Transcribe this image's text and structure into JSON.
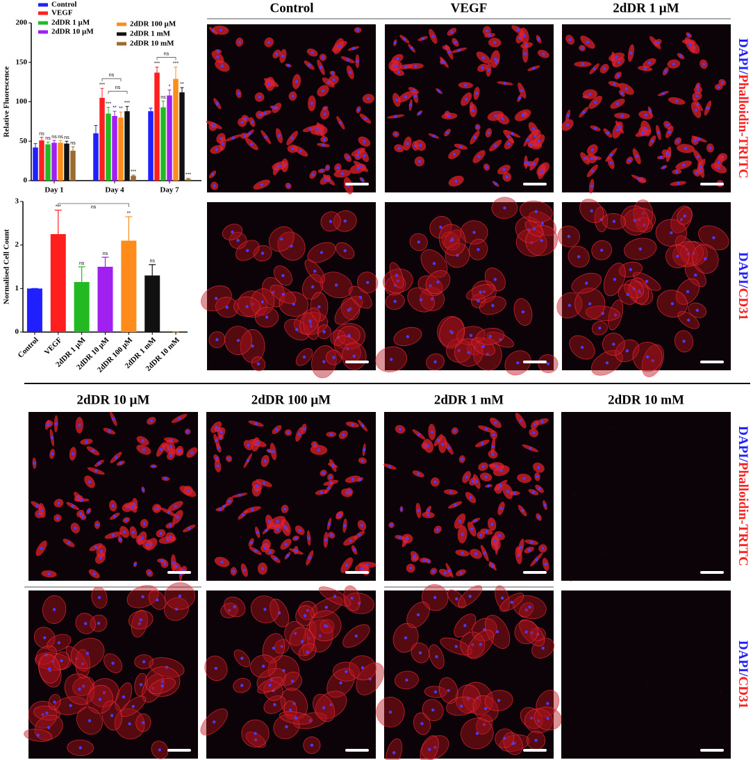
{
  "chart_data": [
    {
      "type": "grouped-bar",
      "ylabel": "Relative Fluorescence",
      "categories": [
        "Day 1",
        "Day 4",
        "Day 7"
      ],
      "ylim": [
        0,
        200
      ],
      "yticks": [
        0,
        50,
        100,
        150,
        200
      ],
      "series": [
        {
          "name": "Control",
          "color": "#1f1fff",
          "values": [
            42,
            60,
            88
          ],
          "errors": [
            5,
            10,
            4
          ],
          "significance": [
            null,
            null,
            null
          ]
        },
        {
          "name": "VEGF",
          "color": "#ff1f1f",
          "values": [
            51,
            105,
            137
          ],
          "errors": [
            4,
            12,
            7
          ],
          "significance": [
            "ns",
            "***",
            "***"
          ]
        },
        {
          "name": "2dDR 1 µM",
          "color": "#22b922",
          "values": [
            46,
            85,
            93
          ],
          "errors": [
            3,
            8,
            8
          ],
          "significance": [
            "ns",
            "***",
            "ns"
          ]
        },
        {
          "name": "2dDR 10 µM",
          "color": "#a020f0",
          "values": [
            48,
            82,
            108
          ],
          "errors": [
            3,
            6,
            7
          ],
          "significance": [
            "ns",
            "**",
            "*"
          ]
        },
        {
          "name": "2dDR 100 µM",
          "color": "#ff8c1a",
          "values": [
            48,
            80,
            129
          ],
          "errors": [
            3,
            7,
            15
          ],
          "significance": [
            "ns",
            "**",
            "***"
          ]
        },
        {
          "name": "2dDR 1 mM",
          "color": "#111111",
          "values": [
            47,
            88,
            112
          ],
          "errors": [
            3,
            6,
            6
          ],
          "significance": [
            "ns",
            "***",
            "**"
          ]
        },
        {
          "name": "2dDR 10 mM",
          "color": "#9c6b30",
          "values": [
            38,
            6,
            2
          ],
          "errors": [
            5,
            1,
            1
          ],
          "significance": [
            "ns",
            "***",
            "***"
          ]
        }
      ],
      "comparisons": [
        {
          "category": 1,
          "series": [
            1,
            4
          ],
          "label": "ns"
        },
        {
          "category": 1,
          "series": [
            2,
            5
          ],
          "label": "ns"
        },
        {
          "category": 2,
          "series": [
            1,
            4
          ],
          "label": "ns"
        }
      ]
    },
    {
      "type": "bar",
      "ylabel": "Normalised Cell Count",
      "categories": [
        "Control",
        "VEGF",
        "2dDR 1 µM",
        "2dDR 10 µM",
        "2dDR 100 µM",
        "2dDR 1 mM",
        "2dDR 10 mM"
      ],
      "values": [
        1,
        2.25,
        1.15,
        1.5,
        2.1,
        1.3,
        0
      ],
      "errors": [
        0,
        0.55,
        0.35,
        0.22,
        0.55,
        0.25,
        0
      ],
      "significance": [
        null,
        "***",
        "ns",
        "ns",
        "**",
        "ns",
        null
      ],
      "colors": [
        "#1f1fff",
        "#ff1f1f",
        "#22b922",
        "#a020f0",
        "#ff8c1a",
        "#111111",
        "#9c6b30"
      ],
      "ylim": [
        0,
        3
      ],
      "yticks": [
        0,
        1,
        2,
        3
      ],
      "comparisons": [
        {
          "categories": [
            1,
            4
          ],
          "label": "ns"
        }
      ]
    }
  ],
  "figure": {
    "top_headers": [
      "Control",
      "VEGF",
      "2dDR 1 µM"
    ],
    "bottom_headers": [
      "2dDR 10 µM",
      "2dDR 100 µM",
      "2dDR 1 mM",
      "2dDR 10 mM"
    ],
    "stain_phalloidin": [
      "DAPI/",
      "Phalloidin-TRITC"
    ],
    "stain_cd31": [
      "DAPI/",
      "CD31"
    ]
  }
}
